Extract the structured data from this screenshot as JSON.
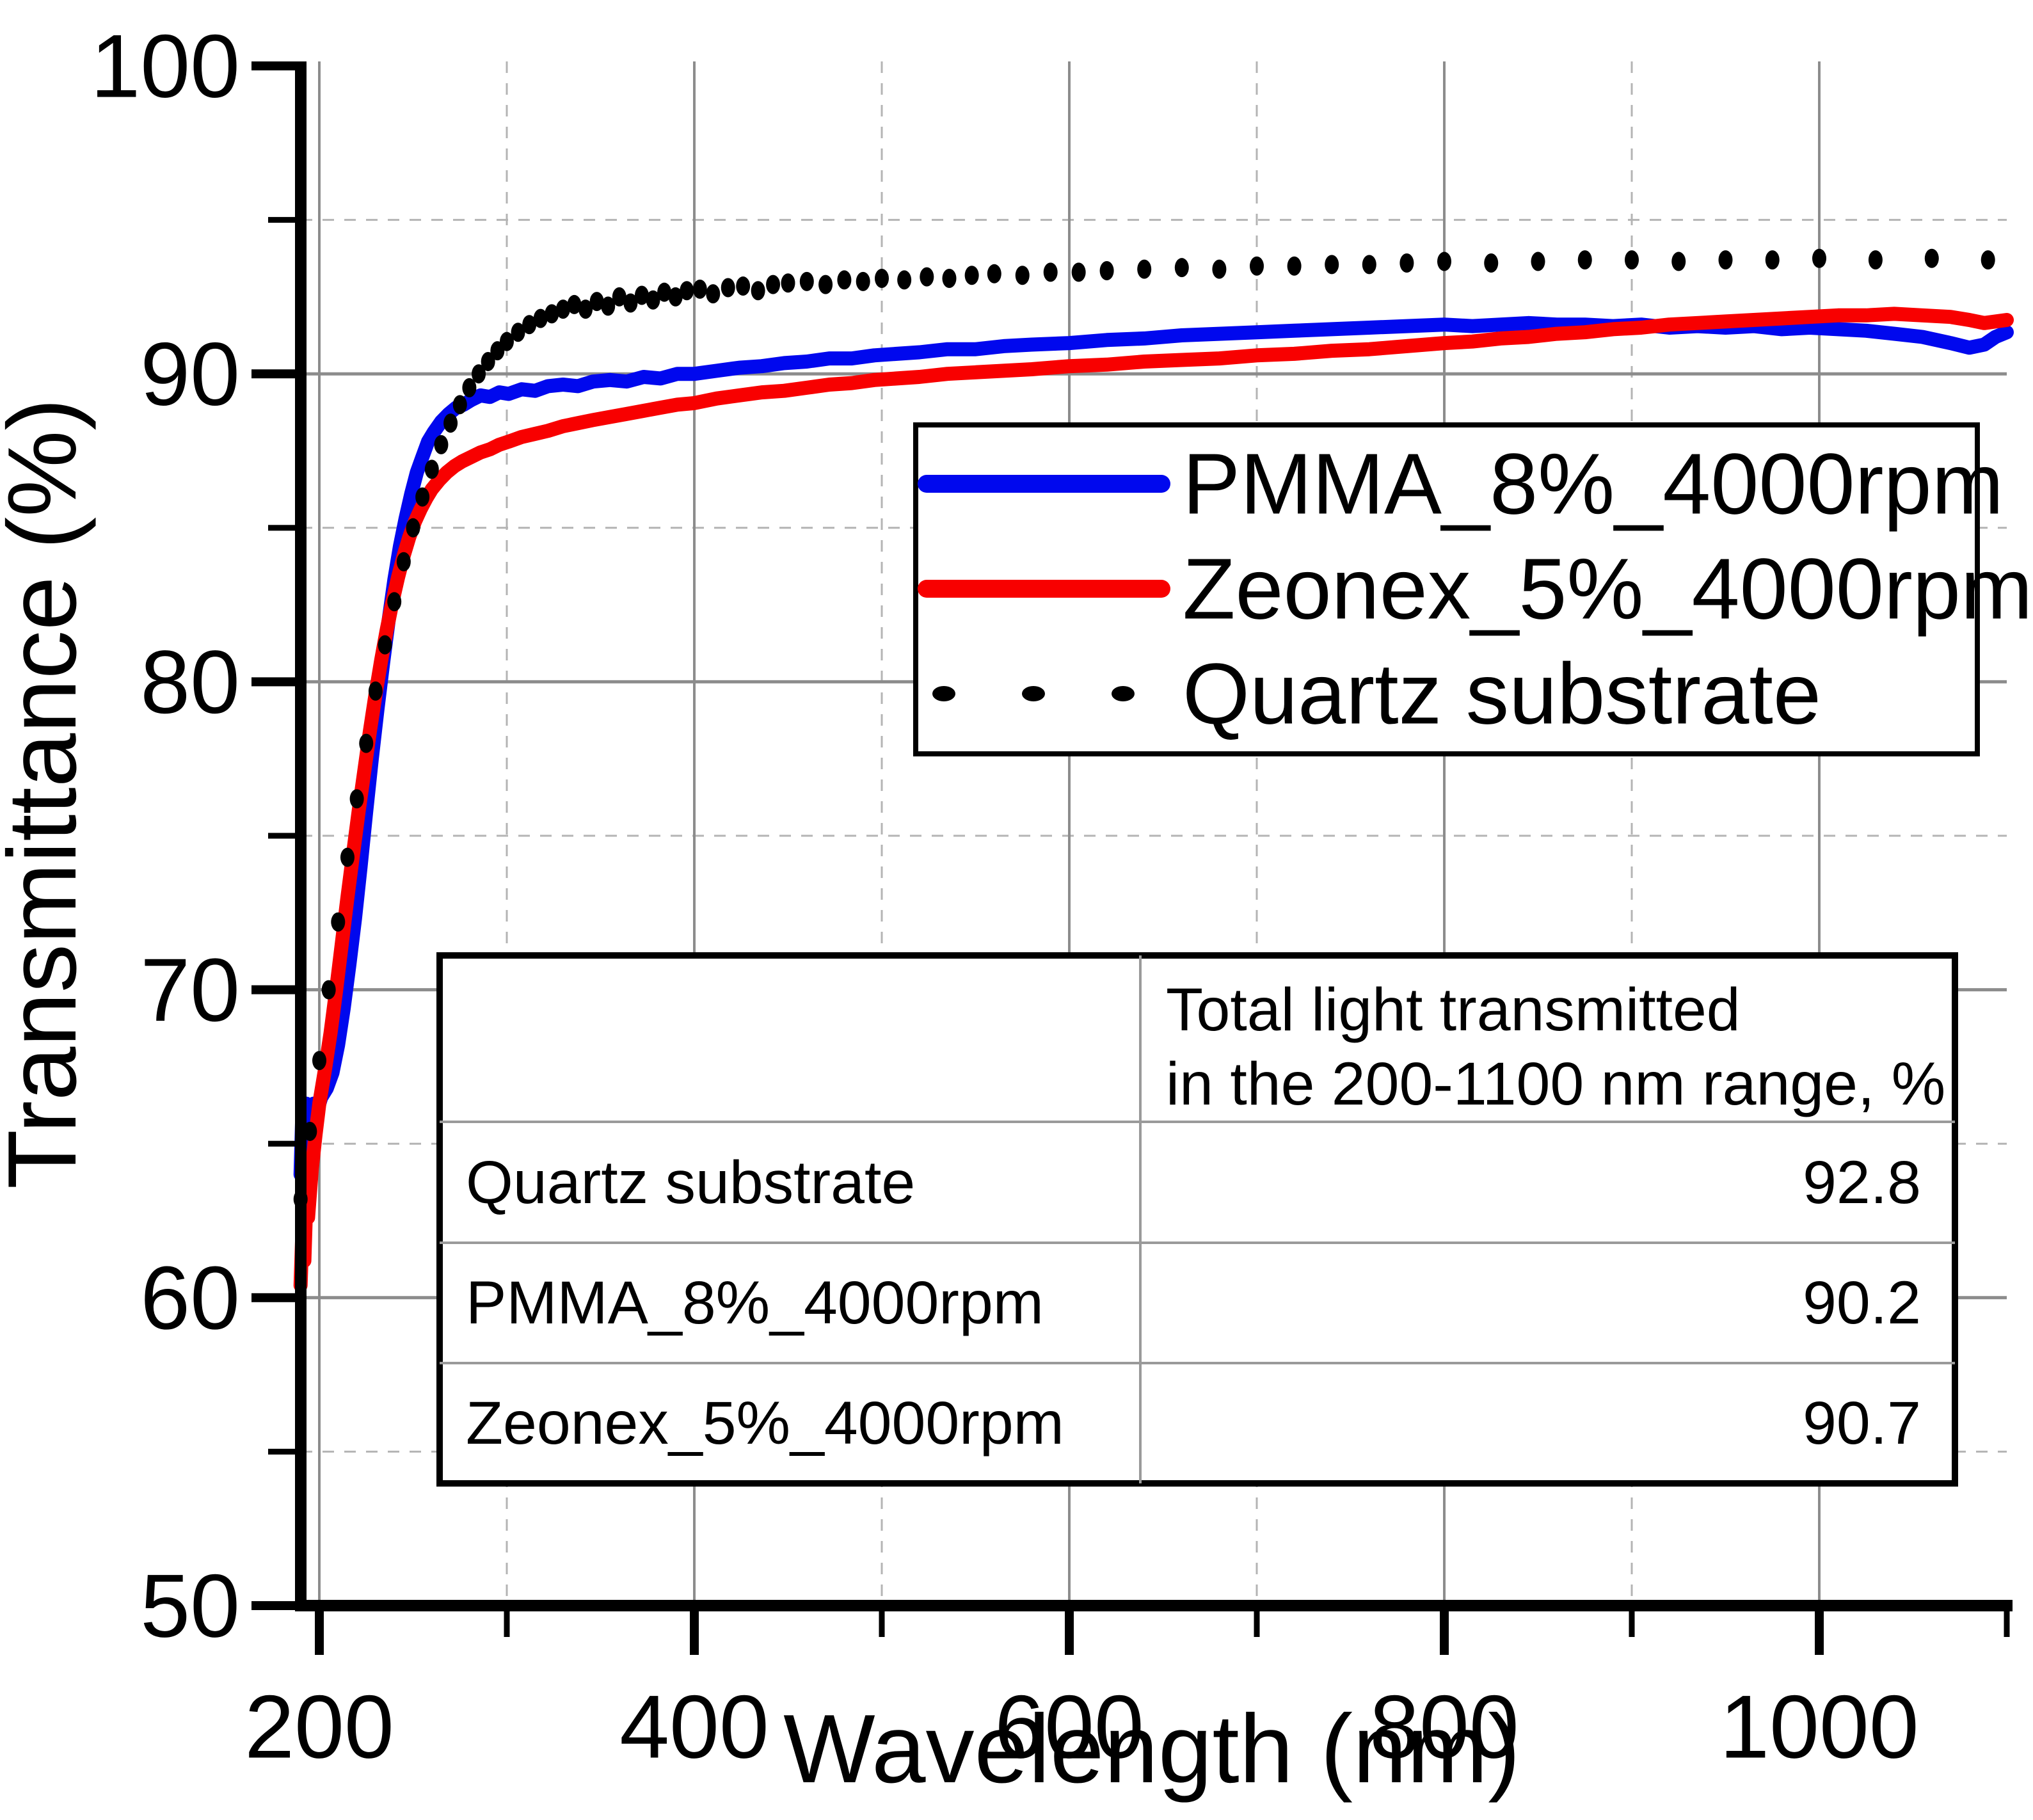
{
  "chart_data": {
    "type": "line",
    "title": "",
    "xlabel": "Wavelength (nm)",
    "ylabel": "Transmittance (%)",
    "xlim": [
      190,
      1100
    ],
    "ylim": [
      50,
      100
    ],
    "x_major_ticks": [
      200,
      400,
      600,
      800,
      1000
    ],
    "x_minor_ticks": [
      300,
      500,
      700,
      900,
      1100
    ],
    "y_major_ticks": [
      100,
      90,
      80,
      70,
      60,
      50
    ],
    "y_minor_ticks": [
      95,
      85,
      75,
      65,
      55
    ],
    "grid": {
      "major": "solid",
      "minor": "dashed",
      "on": true
    },
    "legend_position": "upper right",
    "layout": {
      "background": "#ffffff",
      "axis_color": "#000000",
      "grid_major_color": "#8c8c8c",
      "grid_minor_color": "#b4b4b4",
      "legend_border_color": "#000000",
      "table_border_color": "#000000",
      "table_divider_color": "#9a9a9a"
    },
    "series": [
      {
        "name": "PMMA_8%_4000rpm",
        "color": "#0008ee",
        "style": "solid",
        "points": [
          [
            190,
            64.0
          ],
          [
            191,
            66.1
          ],
          [
            192,
            65.6
          ],
          [
            193,
            66.3
          ],
          [
            195,
            66.0
          ],
          [
            197,
            66.3
          ],
          [
            199,
            66.1
          ],
          [
            201,
            66.5
          ],
          [
            204,
            66.8
          ],
          [
            207,
            67.3
          ],
          [
            210,
            68.2
          ],
          [
            213,
            69.4
          ],
          [
            216,
            70.8
          ],
          [
            219,
            72.3
          ],
          [
            222,
            74.0
          ],
          [
            225,
            75.8
          ],
          [
            228,
            77.5
          ],
          [
            231,
            79.1
          ],
          [
            234,
            80.6
          ],
          [
            237,
            82.0
          ],
          [
            240,
            83.3
          ],
          [
            243,
            84.4
          ],
          [
            246,
            85.3
          ],
          [
            249,
            86.1
          ],
          [
            252,
            86.8
          ],
          [
            255,
            87.3
          ],
          [
            258,
            87.8
          ],
          [
            261,
            88.1
          ],
          [
            265,
            88.45
          ],
          [
            269,
            88.7
          ],
          [
            273,
            88.9
          ],
          [
            277,
            89.0
          ],
          [
            281,
            89.15
          ],
          [
            286,
            89.3
          ],
          [
            291,
            89.25
          ],
          [
            296,
            89.4
          ],
          [
            301,
            89.35
          ],
          [
            308,
            89.5
          ],
          [
            315,
            89.45
          ],
          [
            322,
            89.6
          ],
          [
            330,
            89.65
          ],
          [
            338,
            89.6
          ],
          [
            346,
            89.75
          ],
          [
            355,
            89.8
          ],
          [
            364,
            89.75
          ],
          [
            373,
            89.9
          ],
          [
            382,
            89.85
          ],
          [
            391,
            90.0
          ],
          [
            400,
            90.0
          ],
          [
            412,
            90.1
          ],
          [
            424,
            90.2
          ],
          [
            436,
            90.25
          ],
          [
            448,
            90.35
          ],
          [
            460,
            90.4
          ],
          [
            472,
            90.5
          ],
          [
            484,
            90.5
          ],
          [
            496,
            90.6
          ],
          [
            508,
            90.65
          ],
          [
            520,
            90.7
          ],
          [
            535,
            90.8
          ],
          [
            550,
            90.8
          ],
          [
            565,
            90.9
          ],
          [
            580,
            90.95
          ],
          [
            600,
            91.0
          ],
          [
            620,
            91.1
          ],
          [
            640,
            91.15
          ],
          [
            660,
            91.25
          ],
          [
            680,
            91.3
          ],
          [
            700,
            91.35
          ],
          [
            720,
            91.4
          ],
          [
            740,
            91.45
          ],
          [
            760,
            91.5
          ],
          [
            780,
            91.55
          ],
          [
            800,
            91.6
          ],
          [
            815,
            91.55
          ],
          [
            830,
            91.6
          ],
          [
            845,
            91.65
          ],
          [
            860,
            91.6
          ],
          [
            875,
            91.6
          ],
          [
            890,
            91.55
          ],
          [
            905,
            91.6
          ],
          [
            920,
            91.5
          ],
          [
            935,
            91.55
          ],
          [
            950,
            91.5
          ],
          [
            965,
            91.55
          ],
          [
            980,
            91.45
          ],
          [
            995,
            91.5
          ],
          [
            1010,
            91.45
          ],
          [
            1025,
            91.4
          ],
          [
            1040,
            91.3
          ],
          [
            1055,
            91.2
          ],
          [
            1070,
            91.0
          ],
          [
            1080,
            90.85
          ],
          [
            1088,
            90.95
          ],
          [
            1094,
            91.2
          ],
          [
            1100,
            91.35
          ]
        ]
      },
      {
        "name": "Zeonex_5%_4000rpm",
        "color": "#f80000",
        "style": "solid",
        "points": [
          [
            190,
            60.4
          ],
          [
            191,
            62.2
          ],
          [
            192,
            61.2
          ],
          [
            193,
            63.1
          ],
          [
            194,
            62.6
          ],
          [
            196,
            64.2
          ],
          [
            198,
            65.3
          ],
          [
            200,
            66.3
          ],
          [
            203,
            67.4
          ],
          [
            206,
            68.6
          ],
          [
            209,
            70.0
          ],
          [
            212,
            71.5
          ],
          [
            215,
            73.0
          ],
          [
            218,
            74.4
          ],
          [
            221,
            75.8
          ],
          [
            224,
            77.1
          ],
          [
            227,
            78.4
          ],
          [
            230,
            79.6
          ],
          [
            233,
            80.7
          ],
          [
            236,
            81.7
          ],
          [
            239,
            82.6
          ],
          [
            242,
            83.4
          ],
          [
            245,
            84.1
          ],
          [
            248,
            84.7
          ],
          [
            251,
            85.2
          ],
          [
            254,
            85.6
          ],
          [
            257,
            85.95
          ],
          [
            260,
            86.25
          ],
          [
            264,
            86.55
          ],
          [
            268,
            86.8
          ],
          [
            272,
            87.0
          ],
          [
            276,
            87.15
          ],
          [
            281,
            87.3
          ],
          [
            286,
            87.45
          ],
          [
            291,
            87.55
          ],
          [
            296,
            87.7
          ],
          [
            301,
            87.8
          ],
          [
            308,
            87.95
          ],
          [
            315,
            88.05
          ],
          [
            322,
            88.15
          ],
          [
            330,
            88.3
          ],
          [
            338,
            88.4
          ],
          [
            346,
            88.5
          ],
          [
            355,
            88.6
          ],
          [
            364,
            88.7
          ],
          [
            373,
            88.8
          ],
          [
            382,
            88.9
          ],
          [
            391,
            89.0
          ],
          [
            400,
            89.05
          ],
          [
            412,
            89.2
          ],
          [
            424,
            89.3
          ],
          [
            436,
            89.4
          ],
          [
            448,
            89.45
          ],
          [
            460,
            89.55
          ],
          [
            472,
            89.65
          ],
          [
            484,
            89.7
          ],
          [
            496,
            89.8
          ],
          [
            508,
            89.85
          ],
          [
            520,
            89.9
          ],
          [
            535,
            90.0
          ],
          [
            550,
            90.05
          ],
          [
            565,
            90.1
          ],
          [
            580,
            90.15
          ],
          [
            600,
            90.25
          ],
          [
            620,
            90.3
          ],
          [
            640,
            90.4
          ],
          [
            660,
            90.45
          ],
          [
            680,
            90.5
          ],
          [
            700,
            90.6
          ],
          [
            720,
            90.65
          ],
          [
            740,
            90.75
          ],
          [
            760,
            90.8
          ],
          [
            780,
            90.9
          ],
          [
            800,
            91.0
          ],
          [
            815,
            91.05
          ],
          [
            830,
            91.15
          ],
          [
            845,
            91.2
          ],
          [
            860,
            91.3
          ],
          [
            875,
            91.35
          ],
          [
            890,
            91.45
          ],
          [
            905,
            91.5
          ],
          [
            920,
            91.6
          ],
          [
            935,
            91.65
          ],
          [
            950,
            91.7
          ],
          [
            965,
            91.75
          ],
          [
            980,
            91.8
          ],
          [
            995,
            91.85
          ],
          [
            1010,
            91.9
          ],
          [
            1025,
            91.9
          ],
          [
            1040,
            91.95
          ],
          [
            1055,
            91.9
          ],
          [
            1070,
            91.85
          ],
          [
            1080,
            91.75
          ],
          [
            1088,
            91.65
          ],
          [
            1094,
            91.7
          ],
          [
            1100,
            91.75
          ]
        ]
      },
      {
        "name": "Quartz substrate",
        "color": "#000000",
        "style": "dotted",
        "points": [
          [
            190,
            63.2
          ],
          [
            195,
            65.4
          ],
          [
            200,
            67.7
          ],
          [
            205,
            70.0
          ],
          [
            210,
            72.2
          ],
          [
            215,
            74.3
          ],
          [
            220,
            76.2
          ],
          [
            225,
            78.0
          ],
          [
            230,
            79.7
          ],
          [
            235,
            81.2
          ],
          [
            240,
            82.6
          ],
          [
            245,
            83.9
          ],
          [
            250,
            85.0
          ],
          [
            255,
            86.0
          ],
          [
            260,
            86.9
          ],
          [
            265,
            87.7
          ],
          [
            270,
            88.4
          ],
          [
            275,
            89.0
          ],
          [
            280,
            89.55
          ],
          [
            285,
            90.0
          ],
          [
            290,
            90.4
          ],
          [
            295,
            90.75
          ],
          [
            300,
            91.05
          ],
          [
            306,
            91.35
          ],
          [
            312,
            91.6
          ],
          [
            318,
            91.8
          ],
          [
            324,
            91.95
          ],
          [
            330,
            92.1
          ],
          [
            336,
            92.25
          ],
          [
            342,
            92.1
          ],
          [
            348,
            92.35
          ],
          [
            354,
            92.2
          ],
          [
            360,
            92.5
          ],
          [
            366,
            92.3
          ],
          [
            372,
            92.55
          ],
          [
            378,
            92.4
          ],
          [
            384,
            92.65
          ],
          [
            390,
            92.5
          ],
          [
            396,
            92.7
          ],
          [
            403,
            92.75
          ],
          [
            410,
            92.6
          ],
          [
            418,
            92.8
          ],
          [
            426,
            92.85
          ],
          [
            434,
            92.7
          ],
          [
            442,
            92.9
          ],
          [
            450,
            92.95
          ],
          [
            460,
            93.0
          ],
          [
            470,
            92.9
          ],
          [
            480,
            93.05
          ],
          [
            490,
            93.0
          ],
          [
            500,
            93.1
          ],
          [
            512,
            93.05
          ],
          [
            524,
            93.15
          ],
          [
            536,
            93.1
          ],
          [
            548,
            93.2
          ],
          [
            560,
            93.25
          ],
          [
            575,
            93.2
          ],
          [
            590,
            93.3
          ],
          [
            605,
            93.3
          ],
          [
            620,
            93.35
          ],
          [
            640,
            93.4
          ],
          [
            660,
            93.45
          ],
          [
            680,
            93.4
          ],
          [
            700,
            93.5
          ],
          [
            720,
            93.5
          ],
          [
            740,
            93.55
          ],
          [
            760,
            93.55
          ],
          [
            780,
            93.6
          ],
          [
            800,
            93.65
          ],
          [
            825,
            93.6
          ],
          [
            850,
            93.65
          ],
          [
            875,
            93.7
          ],
          [
            900,
            93.7
          ],
          [
            925,
            93.65
          ],
          [
            950,
            93.7
          ],
          [
            975,
            93.7
          ],
          [
            1000,
            93.75
          ],
          [
            1030,
            93.7
          ],
          [
            1060,
            93.75
          ],
          [
            1090,
            93.7
          ]
        ]
      }
    ],
    "inset_table": {
      "header_lines": [
        "Total light transmitted",
        "in the 200-1100 nm range, %"
      ],
      "rows": [
        {
          "label": "Quartz substrate",
          "value": "92.8"
        },
        {
          "label": "PMMA_8%_4000rpm",
          "value": "90.2"
        },
        {
          "label": "Zeonex_5%_4000rpm",
          "value": "90.7"
        }
      ]
    }
  }
}
